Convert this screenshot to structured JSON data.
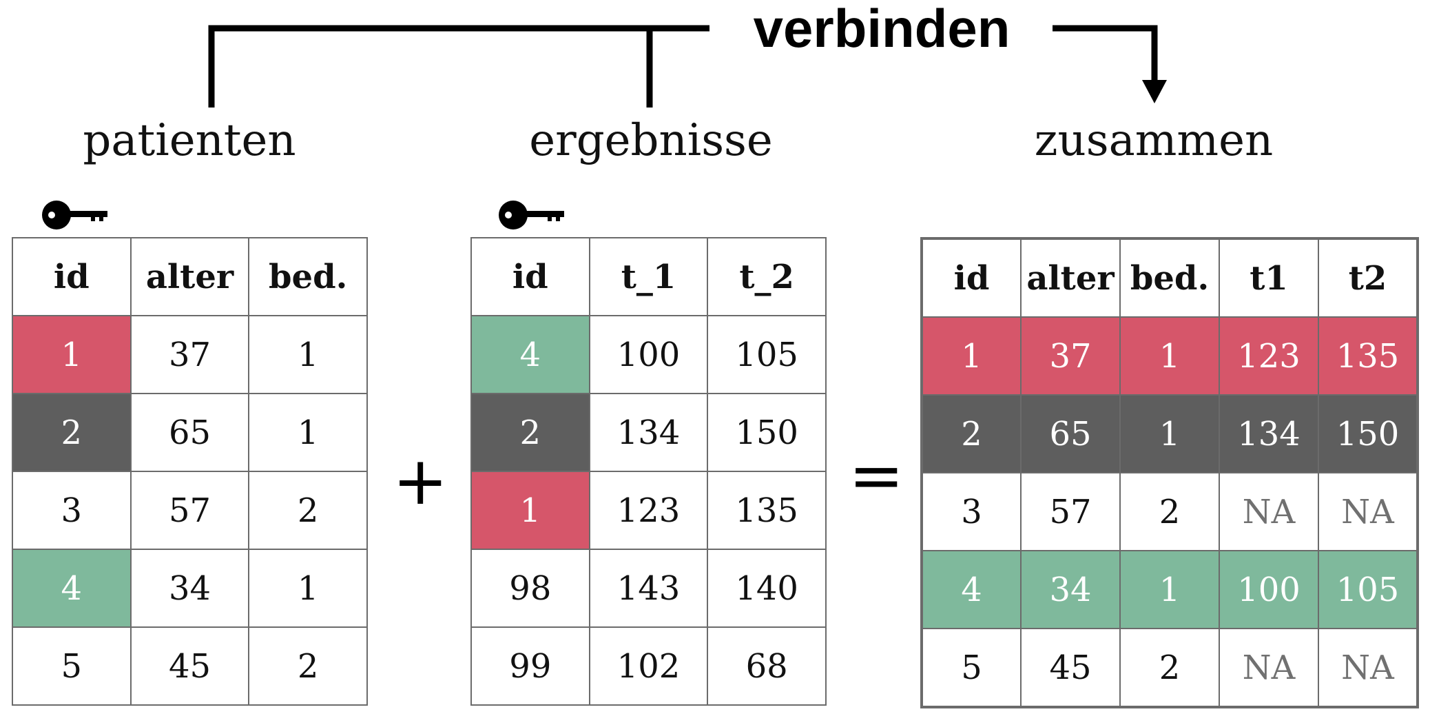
{
  "join_label": "verbinden",
  "colors": {
    "red": "#d6566a",
    "dark": "#5e5e5e",
    "green": "#7fb99c",
    "na_text": "#707070",
    "border": "#6b6b6b"
  },
  "operators": {
    "plus": "+",
    "equals": "="
  },
  "tables": {
    "patienten": {
      "title": "patienten",
      "key_icon": "key-icon",
      "columns": [
        "id",
        "alter",
        "bed."
      ],
      "rows": [
        {
          "cells": [
            "1",
            "37",
            "1"
          ],
          "highlight": "red"
        },
        {
          "cells": [
            "2",
            "65",
            "1"
          ],
          "highlight": "dark"
        },
        {
          "cells": [
            "3",
            "57",
            "2"
          ],
          "highlight": ""
        },
        {
          "cells": [
            "4",
            "34",
            "1"
          ],
          "highlight": "green"
        },
        {
          "cells": [
            "5",
            "45",
            "2"
          ],
          "highlight": ""
        }
      ]
    },
    "ergebnisse": {
      "title": "ergebnisse",
      "key_icon": "key-icon",
      "columns": [
        "id",
        "t_1",
        "t_2"
      ],
      "rows": [
        {
          "cells": [
            "4",
            "100",
            "105"
          ],
          "highlight": "green"
        },
        {
          "cells": [
            "2",
            "134",
            "150"
          ],
          "highlight": "dark"
        },
        {
          "cells": [
            "1",
            "123",
            "135"
          ],
          "highlight": "red"
        },
        {
          "cells": [
            "98",
            "143",
            "140"
          ],
          "highlight": ""
        },
        {
          "cells": [
            "99",
            "102",
            "68"
          ],
          "highlight": ""
        }
      ]
    },
    "zusammen": {
      "title": "zusammen",
      "columns": [
        "id",
        "alter",
        "bed.",
        "t1",
        "t2"
      ],
      "rows": [
        {
          "cells": [
            "1",
            "37",
            "1",
            "123",
            "135"
          ],
          "highlight": "red"
        },
        {
          "cells": [
            "2",
            "65",
            "1",
            "134",
            "150"
          ],
          "highlight": "dark"
        },
        {
          "cells": [
            "3",
            "57",
            "2",
            "NA",
            "NA"
          ],
          "highlight": ""
        },
        {
          "cells": [
            "4",
            "34",
            "1",
            "100",
            "105"
          ],
          "highlight": "green"
        },
        {
          "cells": [
            "5",
            "45",
            "2",
            "NA",
            "NA"
          ],
          "highlight": ""
        }
      ]
    }
  }
}
